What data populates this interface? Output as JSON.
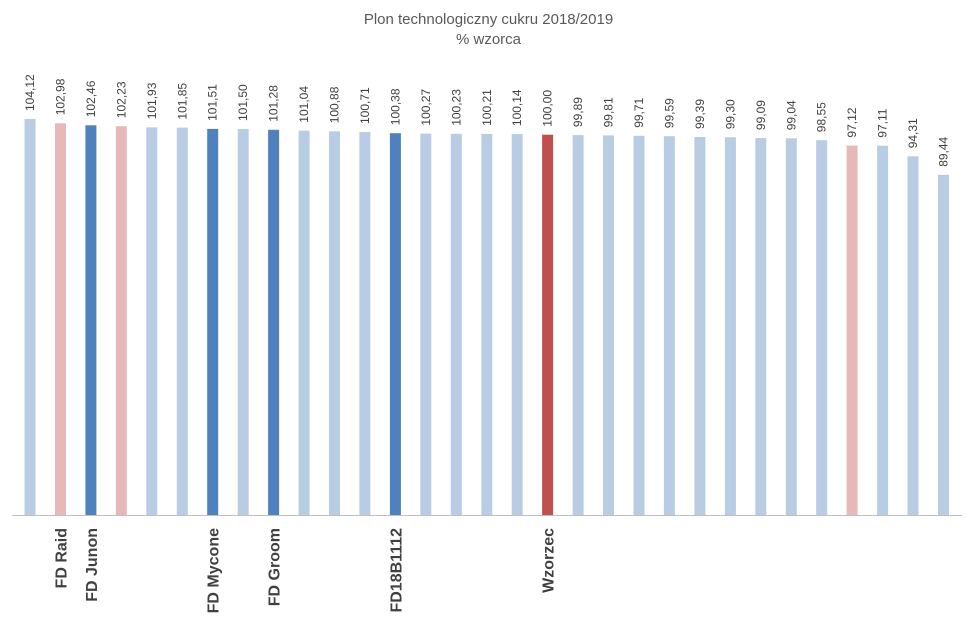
{
  "chart_data": {
    "type": "bar",
    "title": "Plon technologiczny cukru 2018/2019",
    "subtitle": "% wzorca",
    "xlabel": "",
    "ylabel": "",
    "ylim": [
      0,
      104.12
    ],
    "grid": false,
    "legend": "none",
    "colors": {
      "default": "#b8cce4",
      "highlight_blue": "#4f81bd",
      "highlight_pink": "#e6b9b8",
      "reference_red": "#c0504d",
      "axis": "#bfbfbf"
    },
    "categories": [
      "",
      "FD Raid",
      "FD Junon",
      "",
      "",
      "",
      "FD Mycone",
      "",
      "FD Groom",
      "",
      "",
      "",
      "FD18B1112",
      "",
      "",
      "",
      "",
      "Wzorzec",
      "",
      "",
      "",
      "",
      "",
      "",
      "",
      "",
      "",
      "",
      "",
      "",
      ""
    ],
    "values": [
      104.12,
      102.98,
      102.46,
      102.23,
      101.93,
      101.85,
      101.51,
      101.5,
      101.28,
      101.04,
      100.88,
      100.71,
      100.38,
      100.27,
      100.23,
      100.21,
      100.14,
      100.0,
      99.89,
      99.81,
      99.71,
      99.59,
      99.39,
      99.3,
      99.09,
      99.04,
      98.55,
      97.12,
      97.11,
      94.31,
      89.44
    ],
    "value_labels": [
      "104,12",
      "102,98",
      "102,46",
      "102,23",
      "101,93",
      "101,85",
      "101,51",
      "101,50",
      "101,28",
      "101,04",
      "100,88",
      "100,71",
      "100,38",
      "100,27",
      "100,23",
      "100,21",
      "100,14",
      "100,00",
      "99,89",
      "99,81",
      "99,71",
      "99,59",
      "99,39",
      "99,30",
      "99,09",
      "99,04",
      "98,55",
      "97,12",
      "97,11",
      "94,31",
      "89,44"
    ],
    "bar_colors": [
      "default",
      "highlight_pink",
      "highlight_blue",
      "highlight_pink",
      "default",
      "default",
      "highlight_blue",
      "default",
      "highlight_blue",
      "default",
      "default",
      "default",
      "highlight_blue",
      "default",
      "default",
      "default",
      "default",
      "reference_red",
      "default",
      "default",
      "default",
      "default",
      "default",
      "default",
      "default",
      "default",
      "default",
      "highlight_pink",
      "default",
      "default",
      "default"
    ]
  }
}
